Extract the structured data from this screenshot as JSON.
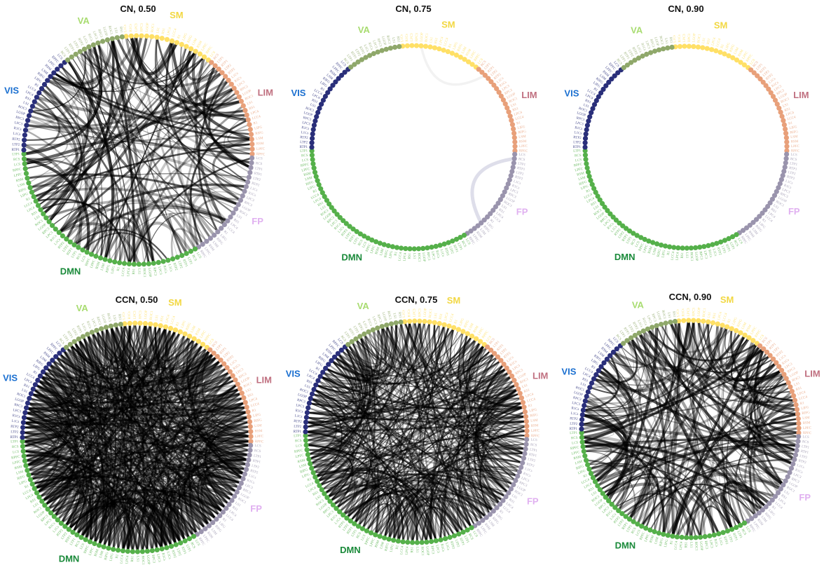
{
  "figure": {
    "networks": [
      {
        "name": "SM",
        "color": "#ffe066",
        "label_color": "#f2d843",
        "start_deg": -96,
        "end_deg": -52
      },
      {
        "name": "LIM",
        "color": "#e8a07a",
        "label_color": "#c07080",
        "start_deg": -50,
        "end_deg": 2
      },
      {
        "name": "FP",
        "color": "#9a94ad",
        "label_color": "#e0b0f0",
        "start_deg": 4,
        "end_deg": 58
      },
      {
        "name": "DMN",
        "color": "#55b04a",
        "label_color": "#1a8a3a",
        "start_deg": 60,
        "end_deg": 178
      },
      {
        "name": "VIS",
        "color": "#2a2f7a",
        "label_color": "#1a6fd0",
        "start_deg": 180,
        "end_deg": 230
      },
      {
        "name": "VA",
        "color": "#8fa86a",
        "label_color": "#a8dc70",
        "start_deg": 232,
        "end_deg": 262
      }
    ],
    "panels": [
      {
        "title": "CN, 0.50",
        "density": "medium",
        "edges": 170,
        "alpha": 0.45
      },
      {
        "title": "CN, 0.75",
        "density": "sparse",
        "edges": 2,
        "alpha": 0.12
      },
      {
        "title": "CN, 0.90",
        "density": "none",
        "edges": 0,
        "alpha": 0
      },
      {
        "title": "CCN, 0.50",
        "density": "dense",
        "edges": 900,
        "alpha": 0.35
      },
      {
        "title": "CCN, 0.75",
        "density": "dense",
        "edges": 520,
        "alpha": 0.4
      },
      {
        "title": "CCN, 0.90",
        "density": "medium",
        "edges": 220,
        "alpha": 0.45
      }
    ],
    "node_labels": [
      "L1Cs",
      "R1Cs",
      "LPC3",
      "RPC3",
      "LGOP",
      "ROC1",
      "LS1",
      "RS1",
      "LPC4",
      "LCC4",
      "R1",
      "LIFG",
      "RIFG",
      "LSM",
      "RSM",
      "LPFC",
      "RPFC",
      "LCS",
      "RCS",
      "LTP1",
      "RTP1",
      "LTP2",
      "RTP2"
    ]
  }
}
